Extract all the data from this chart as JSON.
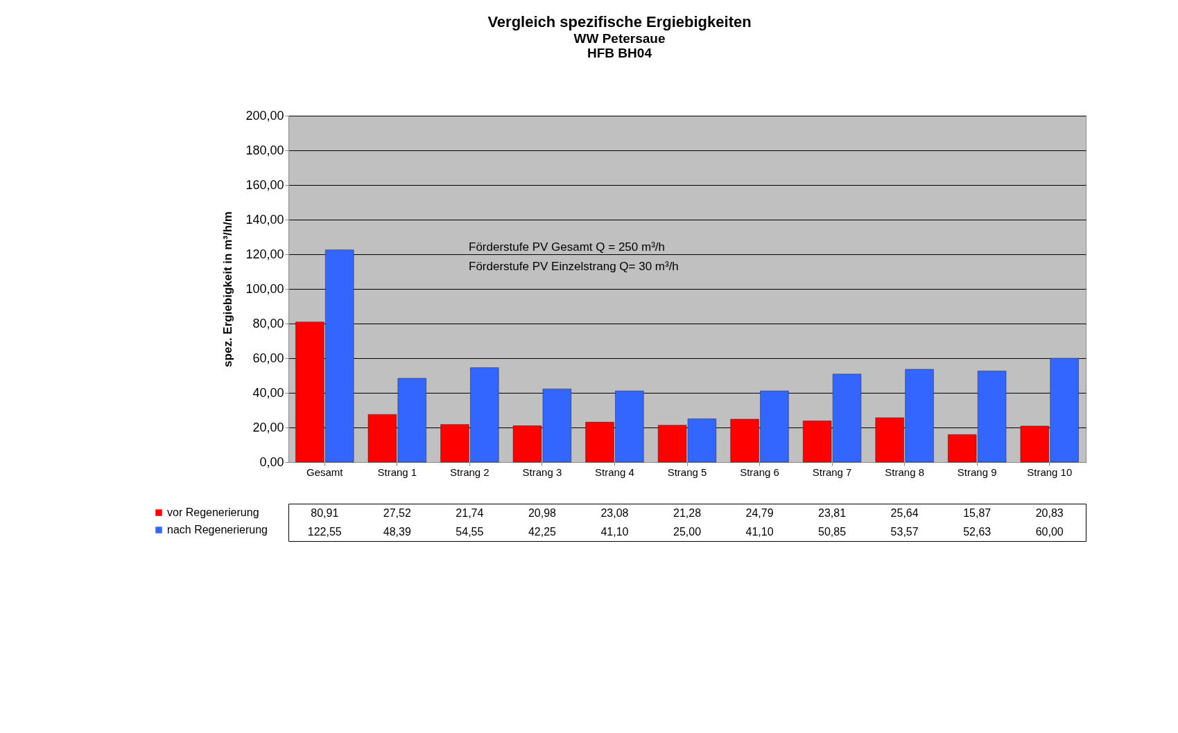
{
  "chart_data": {
    "type": "bar",
    "title": "Vergleich spezifische Ergiebigkeiten",
    "subtitle": "WW Petersaue\nHFB BH04",
    "ylabel": "spez. Ergiebigkeit in m³/h/m",
    "categories": [
      "Gesamt",
      "Strang 1",
      "Strang 2",
      "Strang 3",
      "Strang 4",
      "Strang 5",
      "Strang 6",
      "Strang 7",
      "Strang 8",
      "Strang 9",
      "Strang 10"
    ],
    "series": [
      {
        "name": "vor Regenerierung",
        "color": "#ff0000",
        "values": [
          80.91,
          27.52,
          21.74,
          20.98,
          23.08,
          21.28,
          24.79,
          23.81,
          25.64,
          15.87,
          20.83
        ],
        "value_labels": [
          "80,91",
          "27,52",
          "21,74",
          "20,98",
          "23,08",
          "21,28",
          "24,79",
          "23,81",
          "25,64",
          "15,87",
          "20,83"
        ]
      },
      {
        "name": "nach Regenerierung",
        "color": "#3366ff",
        "values": [
          122.55,
          48.39,
          54.55,
          42.25,
          41.1,
          25.0,
          41.1,
          50.85,
          53.57,
          52.63,
          60.0
        ],
        "value_labels": [
          "122,55",
          "48,39",
          "54,55",
          "42,25",
          "41,10",
          "25,00",
          "41,10",
          "50,85",
          "53,57",
          "52,63",
          "60,00"
        ]
      }
    ],
    "ylim": [
      0,
      200
    ],
    "yticks": [
      {
        "value": 0,
        "label": "0,00"
      },
      {
        "value": 20,
        "label": "20,00"
      },
      {
        "value": 40,
        "label": "40,00"
      },
      {
        "value": 60,
        "label": "60,00"
      },
      {
        "value": 80,
        "label": "80,00"
      },
      {
        "value": 100,
        "label": "100,00"
      },
      {
        "value": 120,
        "label": "120,00"
      },
      {
        "value": 140,
        "label": "140,00"
      },
      {
        "value": 160,
        "label": "160,00"
      },
      {
        "value": 180,
        "label": "180,00"
      },
      {
        "value": 200,
        "label": "200,00"
      }
    ],
    "grid": "y",
    "legend": "bottom left",
    "annotations": [
      "Förderstufe PV Gesamt  Q = 250 m³/h",
      "Förderstufe PV Einzelstrang Q= 30 m³/h"
    ]
  }
}
